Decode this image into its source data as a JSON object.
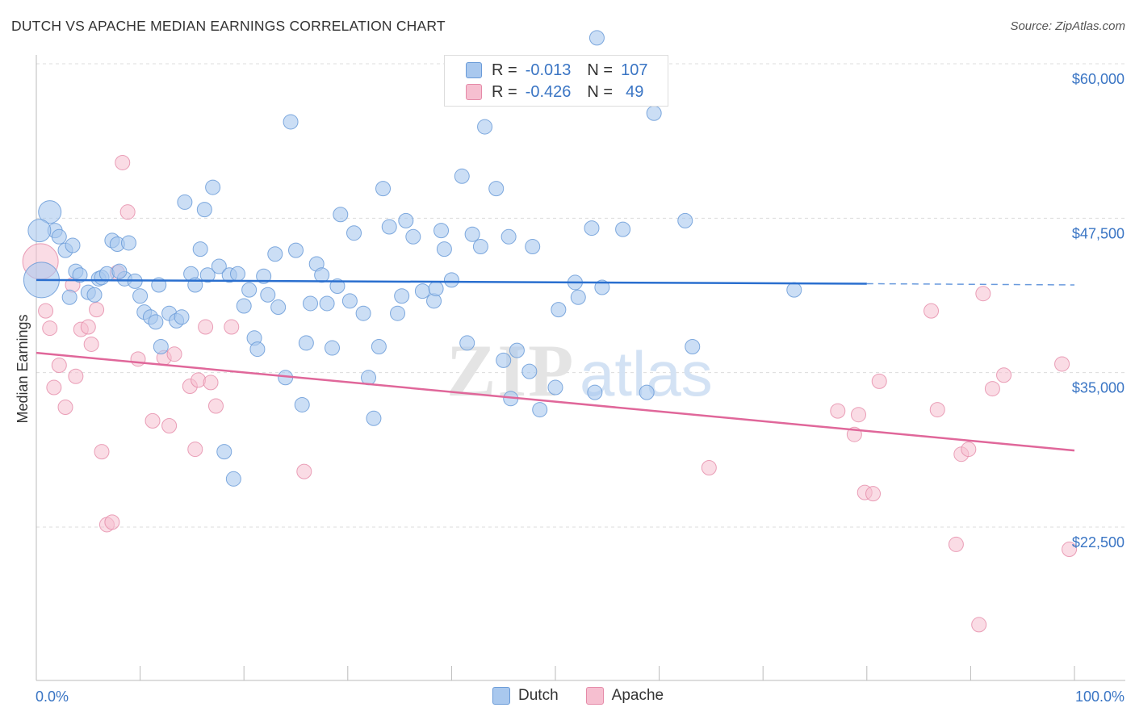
{
  "title": "DUTCH VS APACHE MEDIAN EARNINGS CORRELATION CHART",
  "source": "Source: ZipAtlas.com",
  "watermark": {
    "zip": "ZIP",
    "atlas": "atlas"
  },
  "legend": {
    "dutch": {
      "r_label": "R =",
      "r_value": "-0.013",
      "n_label": "N =",
      "n_value": "107"
    },
    "apache": {
      "r_label": "R =",
      "r_value": "-0.426",
      "n_label": "N =",
      "n_value": "49"
    }
  },
  "bottom_legend": {
    "dutch": "Dutch",
    "apache": "Apache"
  },
  "colors": {
    "dutch_fill": "#a9c8ee",
    "dutch_stroke": "#6a9bd8",
    "dutch_line": "#2a6fcf",
    "apache_fill": "#f6bfd0",
    "apache_stroke": "#e58aa8",
    "apache_line": "#e0679a",
    "label_blue": "#3a75c4"
  },
  "chart_data": {
    "type": "scatter",
    "title": "DUTCH VS APACHE MEDIAN EARNINGS CORRELATION CHART",
    "xlabel": "",
    "ylabel": "Median Earnings",
    "xlim": [
      0,
      100
    ],
    "ylim": [
      10000,
      62500
    ],
    "x_tick_labels": [
      "0.0%",
      "100.0%"
    ],
    "y_ticks": [
      22500,
      35000,
      47500,
      60000
    ],
    "y_tick_labels": [
      "$22,500",
      "$35,000",
      "$47,500",
      "$60,000"
    ],
    "grid": "horizontal dashed",
    "legend_position": "top-center",
    "series": [
      {
        "name": "Dutch",
        "points": [
          [
            0.5,
            42500
          ],
          [
            1.3,
            48000
          ],
          [
            1.8,
            46500
          ],
          [
            2.2,
            46000
          ],
          [
            2.8,
            44900
          ],
          [
            3.5,
            45300
          ],
          [
            3.8,
            43200
          ],
          [
            4.2,
            42900
          ],
          [
            5.0,
            41500
          ],
          [
            5.6,
            41300
          ],
          [
            6.0,
            42600
          ],
          [
            6.3,
            42700
          ],
          [
            6.8,
            43000
          ],
          [
            7.3,
            45700
          ],
          [
            7.8,
            45400
          ],
          [
            8.5,
            42600
          ],
          [
            8.9,
            45500
          ],
          [
            9.5,
            42400
          ],
          [
            10.0,
            41200
          ],
          [
            10.4,
            39900
          ],
          [
            11.0,
            39500
          ],
          [
            11.5,
            39100
          ],
          [
            11.8,
            42100
          ],
          [
            12.0,
            37100
          ],
          [
            12.8,
            39800
          ],
          [
            13.5,
            39200
          ],
          [
            14.0,
            39500
          ],
          [
            14.3,
            48800
          ],
          [
            14.9,
            43000
          ],
          [
            15.3,
            42100
          ],
          [
            15.8,
            45000
          ],
          [
            16.2,
            48200
          ],
          [
            16.5,
            42900
          ],
          [
            17.0,
            50000
          ],
          [
            17.6,
            43600
          ],
          [
            18.1,
            28600
          ],
          [
            18.6,
            42900
          ],
          [
            19.0,
            26400
          ],
          [
            19.4,
            43000
          ],
          [
            20.0,
            40400
          ],
          [
            20.5,
            41700
          ],
          [
            21.0,
            37800
          ],
          [
            21.3,
            36900
          ],
          [
            21.9,
            42800
          ],
          [
            22.3,
            41300
          ],
          [
            23.0,
            44600
          ],
          [
            23.3,
            40300
          ],
          [
            24.0,
            34600
          ],
          [
            24.5,
            55300
          ],
          [
            25.0,
            44900
          ],
          [
            25.6,
            32400
          ],
          [
            26.0,
            37400
          ],
          [
            26.4,
            40600
          ],
          [
            27.0,
            43800
          ],
          [
            27.5,
            42900
          ],
          [
            28.0,
            40600
          ],
          [
            28.5,
            37000
          ],
          [
            29.0,
            42000
          ],
          [
            29.3,
            47800
          ],
          [
            30.2,
            40800
          ],
          [
            30.6,
            46300
          ],
          [
            31.5,
            39800
          ],
          [
            32.0,
            34600
          ],
          [
            32.5,
            31300
          ],
          [
            33.0,
            37100
          ],
          [
            33.4,
            49900
          ],
          [
            34.0,
            46800
          ],
          [
            34.8,
            39800
          ],
          [
            35.2,
            41200
          ],
          [
            35.6,
            47300
          ],
          [
            36.3,
            46000
          ],
          [
            37.2,
            41600
          ],
          [
            38.3,
            40800
          ],
          [
            38.5,
            41800
          ],
          [
            39.0,
            46500
          ],
          [
            39.3,
            45000
          ],
          [
            40.0,
            42500
          ],
          [
            41.0,
            50900
          ],
          [
            41.5,
            37400
          ],
          [
            42.0,
            46200
          ],
          [
            42.8,
            45200
          ],
          [
            43.2,
            54900
          ],
          [
            44.3,
            49900
          ],
          [
            45.0,
            36000
          ],
          [
            45.5,
            46000
          ],
          [
            45.7,
            32900
          ],
          [
            46.3,
            36800
          ],
          [
            47.5,
            35100
          ],
          [
            47.8,
            45200
          ],
          [
            48.5,
            32000
          ],
          [
            50.0,
            33800
          ],
          [
            50.3,
            40100
          ],
          [
            51.9,
            42300
          ],
          [
            52.2,
            41100
          ],
          [
            53.5,
            46700
          ],
          [
            53.8,
            33400
          ],
          [
            54.0,
            62100
          ],
          [
            54.5,
            41900
          ],
          [
            56.5,
            46600
          ],
          [
            58.8,
            33400
          ],
          [
            59.5,
            56000
          ],
          [
            62.5,
            47300
          ],
          [
            63.2,
            37100
          ],
          [
            73.0,
            41700
          ],
          [
            0.3,
            46500
          ],
          [
            3.2,
            41100
          ],
          [
            8.0,
            43200
          ]
        ],
        "sizes": [
          1,
          1,
          1,
          1,
          1,
          1,
          1,
          1,
          1,
          1,
          1,
          1,
          1,
          1,
          1,
          1,
          1,
          1,
          1,
          1,
          1,
          1,
          1,
          1,
          1,
          1,
          1,
          1,
          1,
          1,
          1,
          1,
          1,
          1,
          1,
          1,
          1,
          1,
          1,
          1,
          1,
          1,
          1,
          1,
          1,
          1,
          1,
          1,
          1,
          1,
          1,
          1,
          1,
          1,
          1,
          1,
          1,
          1,
          1,
          1,
          1,
          1,
          1,
          1,
          1,
          1,
          1,
          1,
          1,
          1,
          1,
          1,
          1,
          1,
          1,
          1,
          1,
          1,
          1,
          1,
          1,
          1,
          1,
          1,
          1,
          1,
          1,
          1,
          1,
          1,
          1,
          1,
          1,
          1,
          1,
          1,
          1,
          1,
          1,
          1,
          1,
          1,
          1,
          1,
          2,
          1,
          1
        ],
        "trend": {
          "x": [
            0,
            80
          ],
          "y": [
            42500,
            42200
          ],
          "dashed_to": [
            80,
            100
          ],
          "dashed_y": [
            42200,
            42100
          ]
        }
      },
      {
        "name": "Apache",
        "points": [
          [
            0.4,
            44000
          ],
          [
            0.9,
            40000
          ],
          [
            1.3,
            38600
          ],
          [
            1.7,
            33800
          ],
          [
            2.2,
            35600
          ],
          [
            2.8,
            32200
          ],
          [
            3.5,
            42100
          ],
          [
            3.8,
            34700
          ],
          [
            4.3,
            38500
          ],
          [
            5.0,
            38700
          ],
          [
            5.3,
            37300
          ],
          [
            5.8,
            40100
          ],
          [
            6.3,
            28600
          ],
          [
            6.8,
            22700
          ],
          [
            7.3,
            22900
          ],
          [
            7.8,
            43100
          ],
          [
            8.3,
            52000
          ],
          [
            8.8,
            48000
          ],
          [
            9.8,
            36100
          ],
          [
            11.2,
            31100
          ],
          [
            12.3,
            36200
          ],
          [
            12.8,
            30700
          ],
          [
            13.3,
            36500
          ],
          [
            14.8,
            33900
          ],
          [
            15.3,
            28800
          ],
          [
            15.6,
            34400
          ],
          [
            16.3,
            38700
          ],
          [
            16.8,
            34200
          ],
          [
            17.3,
            32300
          ],
          [
            18.8,
            38700
          ],
          [
            25.8,
            27000
          ],
          [
            64.8,
            27300
          ],
          [
            77.2,
            31900
          ],
          [
            78.8,
            30000
          ],
          [
            79.2,
            31600
          ],
          [
            79.8,
            25300
          ],
          [
            80.6,
            25200
          ],
          [
            81.2,
            34300
          ],
          [
            86.2,
            40000
          ],
          [
            86.8,
            32000
          ],
          [
            88.6,
            21100
          ],
          [
            89.1,
            28400
          ],
          [
            89.8,
            28800
          ],
          [
            90.8,
            14600
          ],
          [
            91.2,
            41400
          ],
          [
            92.1,
            33700
          ],
          [
            93.2,
            34800
          ],
          [
            98.8,
            35700
          ],
          [
            99.5,
            20700
          ]
        ],
        "trend": {
          "x": [
            0,
            100
          ],
          "y": [
            36600,
            28700
          ]
        }
      }
    ]
  }
}
